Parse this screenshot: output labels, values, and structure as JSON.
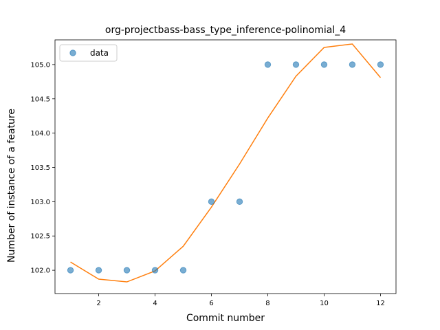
{
  "chart_data": {
    "type": "scatter",
    "title": "org-projectbass-bass_type_inference-polinomial_4",
    "xlabel": "Commit number",
    "ylabel": "Number of instance of a feature",
    "xlim": [
      0.45,
      12.55
    ],
    "ylim": [
      101.66,
      105.36
    ],
    "x_ticks": [
      2,
      4,
      6,
      8,
      10,
      12
    ],
    "y_ticks": [
      102.0,
      102.5,
      103.0,
      103.5,
      104.0,
      104.5,
      105.0
    ],
    "grid": false,
    "legend_position": "top-left",
    "series": [
      {
        "name": "data",
        "kind": "scatter",
        "color": "#1f77b4",
        "x": [
          1,
          2,
          3,
          4,
          5,
          6,
          7,
          8,
          9,
          10,
          11,
          12
        ],
        "y": [
          102,
          102,
          102,
          102,
          102,
          103,
          103,
          105,
          105,
          105,
          105,
          105
        ]
      },
      {
        "kind": "line",
        "color": "#ff7f0e",
        "x": [
          1,
          2,
          3,
          4,
          5,
          6,
          7,
          8,
          9,
          10,
          11,
          12
        ],
        "y": [
          102.12,
          101.87,
          101.83,
          101.99,
          102.35,
          102.92,
          103.55,
          104.22,
          104.83,
          105.25,
          105.3,
          104.81
        ]
      }
    ]
  }
}
